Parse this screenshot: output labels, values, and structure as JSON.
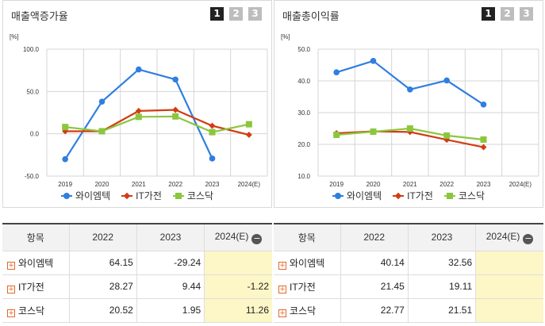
{
  "colors": {
    "s0": "#2f7ee0",
    "s1": "#d23c12",
    "s2": "#8cc63e",
    "grid": "#d5d5d5"
  },
  "pager": [
    "1",
    "2",
    "3"
  ],
  "legend": [
    "와이엠텍",
    "IT가전",
    "코스닥"
  ],
  "unit": "[%]",
  "table_header": {
    "item": "항목",
    "years": [
      "2022",
      "2023",
      "2024(E)"
    ],
    "collapse": "−",
    "expand": "+"
  },
  "left": {
    "title": "매출액증가율",
    "rows": [
      {
        "name": "와이엠텍",
        "values": [
          "64.15",
          "-29.24",
          ""
        ]
      },
      {
        "name": "IT가전",
        "values": [
          "28.27",
          "9.44",
          "-1.22"
        ]
      },
      {
        "name": "코스닥",
        "values": [
          "20.52",
          "1.95",
          "11.26"
        ]
      }
    ]
  },
  "right": {
    "title": "매출총이익률",
    "rows": [
      {
        "name": "와이엠텍",
        "values": [
          "40.14",
          "32.56",
          ""
        ]
      },
      {
        "name": "IT가전",
        "values": [
          "21.45",
          "19.11",
          ""
        ]
      },
      {
        "name": "코스닥",
        "values": [
          "22.77",
          "21.51",
          ""
        ]
      }
    ]
  },
  "chart_data": [
    {
      "type": "line",
      "title": "매출액증가율",
      "ylabel": "[%]",
      "categories": [
        "2019",
        "2020",
        "2021",
        "2022",
        "2023",
        "2024(E)"
      ],
      "ylim": [
        -50,
        100
      ],
      "yticks": [
        "100.0",
        "50.0",
        "0.0",
        "-50.0"
      ],
      "grid": true,
      "legend_position": "bottom",
      "series": [
        {
          "name": "와이엠텍",
          "values": [
            -30,
            38,
            76,
            64.15,
            -29.24,
            null
          ]
        },
        {
          "name": "IT가전",
          "values": [
            3,
            3,
            27,
            28.27,
            9.44,
            -1.22
          ]
        },
        {
          "name": "코스닥",
          "values": [
            8,
            3,
            20,
            20.52,
            1.95,
            11.26
          ]
        }
      ]
    },
    {
      "type": "line",
      "title": "매출총이익률",
      "ylabel": "[%]",
      "categories": [
        "2019",
        "2020",
        "2021",
        "2022",
        "2023",
        "2024(E)"
      ],
      "ylim": [
        10,
        50
      ],
      "yticks": [
        "50.0",
        "40.0",
        "30.0",
        "20.0",
        "10.0"
      ],
      "grid": true,
      "legend_position": "bottom",
      "series": [
        {
          "name": "와이엠텍",
          "values": [
            42.7,
            46.3,
            37.3,
            40.14,
            32.56,
            null
          ]
        },
        {
          "name": "IT가전",
          "values": [
            23.5,
            24.1,
            23.9,
            21.45,
            19.11,
            null
          ]
        },
        {
          "name": "코스닥",
          "values": [
            23.0,
            24.0,
            25.0,
            22.77,
            21.51,
            null
          ]
        }
      ]
    }
  ]
}
